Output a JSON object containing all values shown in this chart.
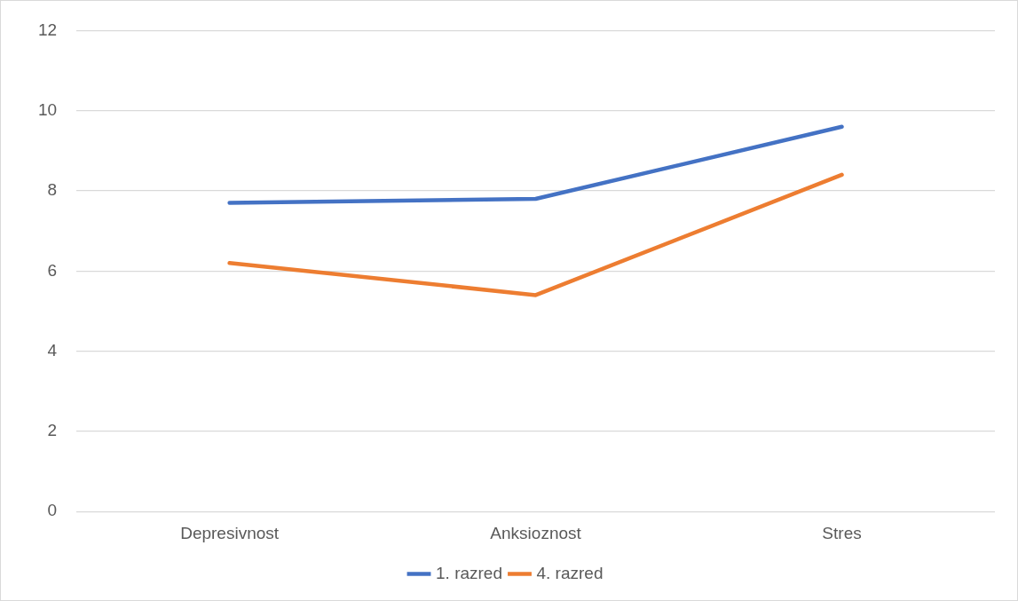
{
  "chart_data": {
    "type": "line",
    "categories": [
      "Depresivnost",
      "Anksioznost",
      "Stres"
    ],
    "series": [
      {
        "name": "1. razred",
        "color": "#4472c4",
        "values": [
          7.7,
          7.8,
          9.6
        ]
      },
      {
        "name": "4. razred",
        "color": "#ed7d31",
        "values": [
          6.2,
          5.4,
          8.4
        ]
      }
    ],
    "ylim": [
      0,
      12
    ],
    "yticks": [
      0,
      2,
      4,
      6,
      8,
      10,
      12
    ],
    "grid": "y",
    "legend": "bottom",
    "marker": "none",
    "line_style": "solid"
  }
}
